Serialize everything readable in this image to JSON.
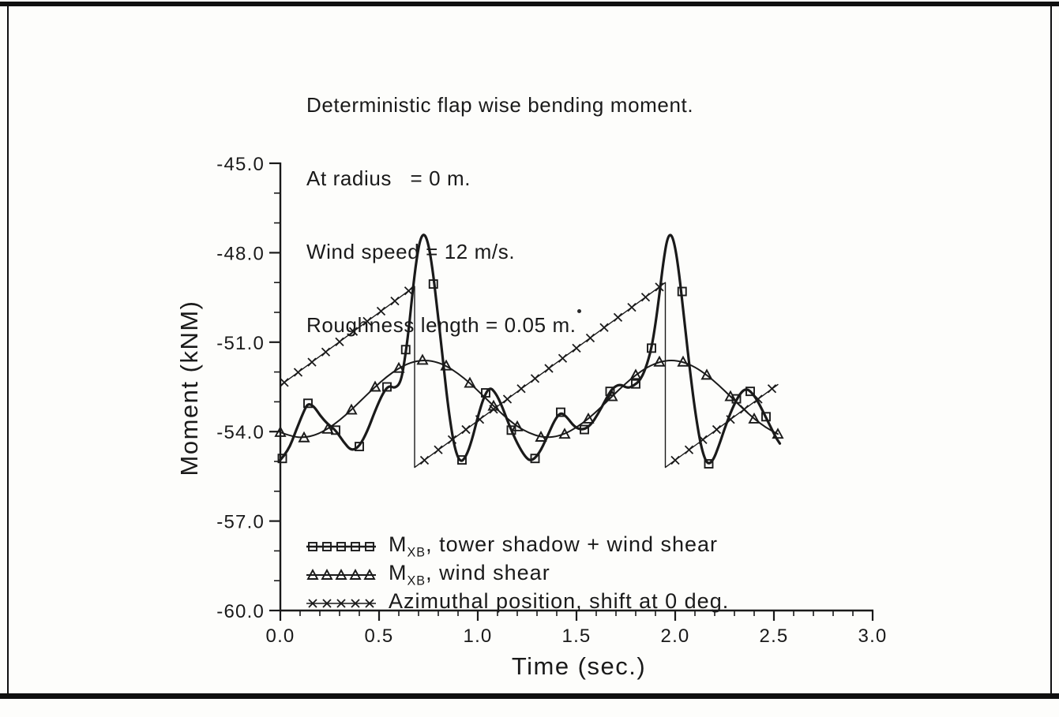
{
  "header": {
    "lines": [
      "Deterministic flap wise bending moment.",
      "At radius   = 0 m.",
      "Wind speed = 12 m/s.",
      "Roughness length = 0.05 m."
    ]
  },
  "chart_data": {
    "type": "line",
    "xlabel": "Time (sec.)",
    "ylabel": "Moment (kNM)",
    "xlim": [
      0.0,
      3.0
    ],
    "ylim": [
      -60.0,
      -45.0
    ],
    "grid": false,
    "legend_position": "lower-left-inside",
    "x_major_ticks": [
      0.0,
      0.5,
      1.0,
      1.5,
      2.0,
      2.5,
      3.0
    ],
    "x_tick_labels": [
      "0.0",
      "0.5",
      "1.0",
      "1.5",
      "2.0",
      "2.5",
      "3.0"
    ],
    "x_minor_step": 0.1,
    "y_major_ticks": [
      -45,
      -48,
      -51,
      -54,
      -57,
      -60
    ],
    "y_tick_labels": [
      "-45.0",
      "-48.0",
      "-51.0",
      "-54.0",
      "-57.0",
      "-60.0"
    ],
    "y_minor_step": 1.0,
    "series": [
      {
        "name": "mxb-tower-shadow-wind-shear",
        "marker": "square",
        "smooth": true,
        "line_width": 3.2,
        "legend": {
          "main": "M",
          "sub": "XB",
          "rest": ", tower shadow + wind shear"
        },
        "points": [
          [
            0.0,
            -54.95
          ],
          [
            0.04,
            -54.65
          ],
          [
            0.08,
            -53.95
          ],
          [
            0.12,
            -53.3
          ],
          [
            0.14,
            -53.05
          ],
          [
            0.17,
            -53.15
          ],
          [
            0.2,
            -53.45
          ],
          [
            0.24,
            -53.75
          ],
          [
            0.28,
            -53.95
          ],
          [
            0.32,
            -54.35
          ],
          [
            0.36,
            -54.65
          ],
          [
            0.4,
            -54.5
          ],
          [
            0.44,
            -54.0
          ],
          [
            0.48,
            -53.3
          ],
          [
            0.52,
            -52.7
          ],
          [
            0.55,
            -52.45
          ],
          [
            0.58,
            -52.55
          ],
          [
            0.61,
            -52.35
          ],
          [
            0.63,
            -51.6
          ],
          [
            0.65,
            -50.6
          ],
          [
            0.67,
            -49.3
          ],
          [
            0.69,
            -48.2
          ],
          [
            0.71,
            -47.5
          ],
          [
            0.73,
            -47.35
          ],
          [
            0.75,
            -47.7
          ],
          [
            0.77,
            -48.5
          ],
          [
            0.79,
            -49.6
          ],
          [
            0.82,
            -51.4
          ],
          [
            0.85,
            -53.2
          ],
          [
            0.88,
            -54.5
          ],
          [
            0.91,
            -55.05
          ],
          [
            0.94,
            -54.85
          ],
          [
            0.97,
            -54.3
          ],
          [
            1.0,
            -53.5
          ],
          [
            1.03,
            -52.85
          ],
          [
            1.06,
            -52.5
          ],
          [
            1.09,
            -52.7
          ],
          [
            1.12,
            -53.1
          ],
          [
            1.16,
            -53.8
          ],
          [
            1.2,
            -54.4
          ],
          [
            1.24,
            -54.85
          ],
          [
            1.27,
            -55.0
          ],
          [
            1.31,
            -54.75
          ],
          [
            1.35,
            -54.2
          ],
          [
            1.39,
            -53.6
          ],
          [
            1.42,
            -53.35
          ],
          [
            1.45,
            -53.5
          ],
          [
            1.49,
            -53.85
          ],
          [
            1.53,
            -53.95
          ],
          [
            1.57,
            -53.8
          ],
          [
            1.61,
            -53.4
          ],
          [
            1.65,
            -52.9
          ],
          [
            1.68,
            -52.55
          ],
          [
            1.72,
            -52.4
          ],
          [
            1.76,
            -52.55
          ],
          [
            1.79,
            -52.45
          ],
          [
            1.82,
            -52.3
          ],
          [
            1.85,
            -51.9
          ],
          [
            1.88,
            -51.2
          ],
          [
            1.9,
            -50.4
          ],
          [
            1.92,
            -49.4
          ],
          [
            1.94,
            -48.3
          ],
          [
            1.96,
            -47.5
          ],
          [
            1.98,
            -47.35
          ],
          [
            2.0,
            -47.8
          ],
          [
            2.02,
            -48.7
          ],
          [
            2.04,
            -49.9
          ],
          [
            2.07,
            -51.7
          ],
          [
            2.1,
            -53.3
          ],
          [
            2.13,
            -54.5
          ],
          [
            2.16,
            -55.1
          ],
          [
            2.19,
            -55.0
          ],
          [
            2.22,
            -54.5
          ],
          [
            2.25,
            -53.9
          ],
          [
            2.29,
            -53.2
          ],
          [
            2.33,
            -52.7
          ],
          [
            2.36,
            -52.55
          ],
          [
            2.39,
            -52.7
          ],
          [
            2.42,
            -53.0
          ],
          [
            2.45,
            -53.4
          ],
          [
            2.48,
            -53.8
          ],
          [
            2.51,
            -54.2
          ],
          [
            2.53,
            -54.4
          ]
        ],
        "markers": [
          [
            0.01,
            -54.9
          ],
          [
            0.14,
            -53.05
          ],
          [
            0.28,
            -53.95
          ],
          [
            0.4,
            -54.5
          ],
          [
            0.54,
            -52.5
          ],
          [
            0.635,
            -51.25
          ],
          [
            0.775,
            -49.05
          ],
          [
            0.92,
            -54.95
          ],
          [
            1.04,
            -52.7
          ],
          [
            1.17,
            -53.95
          ],
          [
            1.29,
            -54.9
          ],
          [
            1.42,
            -53.35
          ],
          [
            1.54,
            -53.93
          ],
          [
            1.67,
            -52.65
          ],
          [
            1.8,
            -52.4
          ],
          [
            1.88,
            -51.2
          ],
          [
            2.035,
            -49.3
          ],
          [
            2.17,
            -55.08
          ],
          [
            2.31,
            -52.9
          ],
          [
            2.38,
            -52.65
          ],
          [
            2.46,
            -53.5
          ]
        ]
      },
      {
        "name": "mxb-wind-shear",
        "marker": "triangle",
        "smooth": true,
        "line_width": 2.0,
        "legend": {
          "main": "M",
          "sub": "XB",
          "rest": ", wind shear"
        },
        "points": [
          [
            0.0,
            -54.02
          ],
          [
            0.06,
            -54.17
          ],
          [
            0.12,
            -54.2
          ],
          [
            0.18,
            -54.11
          ],
          [
            0.24,
            -53.91
          ],
          [
            0.3,
            -53.62
          ],
          [
            0.36,
            -53.27
          ],
          [
            0.42,
            -52.88
          ],
          [
            0.48,
            -52.5
          ],
          [
            0.54,
            -52.15
          ],
          [
            0.6,
            -51.87
          ],
          [
            0.66,
            -51.68
          ],
          [
            0.72,
            -51.6
          ],
          [
            0.78,
            -51.64
          ],
          [
            0.84,
            -51.79
          ],
          [
            0.9,
            -52.05
          ],
          [
            0.96,
            -52.37
          ],
          [
            1.02,
            -52.75
          ],
          [
            1.08,
            -53.14
          ],
          [
            1.14,
            -53.51
          ],
          [
            1.2,
            -53.83
          ],
          [
            1.26,
            -54.05
          ],
          [
            1.32,
            -54.18
          ],
          [
            1.38,
            -54.19
          ],
          [
            1.44,
            -54.08
          ],
          [
            1.5,
            -53.86
          ],
          [
            1.56,
            -53.57
          ],
          [
            1.62,
            -53.21
          ],
          [
            1.68,
            -52.82
          ],
          [
            1.74,
            -52.44
          ],
          [
            1.8,
            -52.1
          ],
          [
            1.86,
            -51.83
          ],
          [
            1.92,
            -51.66
          ],
          [
            1.98,
            -51.6
          ],
          [
            2.04,
            -51.66
          ],
          [
            2.1,
            -51.83
          ],
          [
            2.16,
            -52.1
          ],
          [
            2.22,
            -52.44
          ],
          [
            2.28,
            -52.82
          ],
          [
            2.34,
            -53.21
          ],
          [
            2.4,
            -53.57
          ],
          [
            2.46,
            -53.87
          ],
          [
            2.52,
            -54.08
          ]
        ],
        "markers": [
          [
            0.0,
            -54.02
          ],
          [
            0.12,
            -54.2
          ],
          [
            0.24,
            -53.91
          ],
          [
            0.36,
            -53.27
          ],
          [
            0.48,
            -52.5
          ],
          [
            0.6,
            -51.87
          ],
          [
            0.72,
            -51.6
          ],
          [
            0.84,
            -51.79
          ],
          [
            0.96,
            -52.37
          ],
          [
            1.08,
            -53.14
          ],
          [
            1.2,
            -53.83
          ],
          [
            1.32,
            -54.18
          ],
          [
            1.44,
            -54.08
          ],
          [
            1.56,
            -53.57
          ],
          [
            1.68,
            -52.82
          ],
          [
            1.8,
            -52.1
          ],
          [
            1.92,
            -51.66
          ],
          [
            2.04,
            -51.66
          ],
          [
            2.16,
            -52.1
          ],
          [
            2.28,
            -52.82
          ],
          [
            2.4,
            -53.57
          ],
          [
            2.52,
            -54.08
          ]
        ]
      },
      {
        "name": "azimuthal-position",
        "marker": "x",
        "smooth": false,
        "line_width": 1.4,
        "legend": {
          "main": "",
          "sub": "",
          "rest": "Azimuthal position, shift at 0 deg."
        },
        "points": [
          [
            0.0,
            -52.45
          ],
          [
            0.68,
            -49.13
          ],
          [
            0.68,
            -55.2
          ],
          [
            1.95,
            -49.0
          ],
          [
            1.95,
            -55.2
          ],
          [
            2.52,
            -52.42
          ]
        ],
        "markers": [
          [
            0.02,
            -52.35
          ],
          [
            0.09,
            -52.01
          ],
          [
            0.16,
            -51.67
          ],
          [
            0.23,
            -51.33
          ],
          [
            0.3,
            -50.99
          ],
          [
            0.37,
            -50.64
          ],
          [
            0.44,
            -50.3
          ],
          [
            0.51,
            -49.96
          ],
          [
            0.58,
            -49.62
          ],
          [
            0.65,
            -49.28
          ],
          [
            0.73,
            -54.96
          ],
          [
            0.8,
            -54.61
          ],
          [
            0.87,
            -54.27
          ],
          [
            0.94,
            -53.93
          ],
          [
            1.01,
            -53.59
          ],
          [
            1.08,
            -53.25
          ],
          [
            1.15,
            -52.91
          ],
          [
            1.22,
            -52.56
          ],
          [
            1.29,
            -52.22
          ],
          [
            1.36,
            -51.88
          ],
          [
            1.43,
            -51.54
          ],
          [
            1.5,
            -51.2
          ],
          [
            1.57,
            -50.86
          ],
          [
            1.64,
            -50.51
          ],
          [
            1.71,
            -50.17
          ],
          [
            1.78,
            -49.83
          ],
          [
            1.85,
            -49.49
          ],
          [
            1.92,
            -49.15
          ],
          [
            2.0,
            -54.96
          ],
          [
            2.07,
            -54.61
          ],
          [
            2.14,
            -54.27
          ],
          [
            2.21,
            -53.93
          ],
          [
            2.28,
            -53.59
          ],
          [
            2.35,
            -53.25
          ],
          [
            2.42,
            -52.91
          ],
          [
            2.49,
            -52.56
          ]
        ]
      }
    ]
  }
}
